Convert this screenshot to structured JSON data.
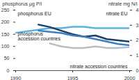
{
  "chart_data": {
    "type": "line",
    "ylabel": "phosphorus µg P/l",
    "y2label": "nitrate mg N/l",
    "x": [
      1990,
      1991,
      1992,
      1993,
      1994,
      1995,
      1996,
      1997,
      1998,
      1999,
      2000
    ],
    "xlim": [
      1990,
      2000
    ],
    "xticks": [
      1990,
      1995,
      2000
    ],
    "ylim": [
      0,
      250
    ],
    "yticks": [
      0,
      50,
      100,
      150,
      200,
      250
    ],
    "y2lim": [
      0,
      4
    ],
    "y2ticks": [
      0,
      1,
      2,
      3,
      4
    ],
    "series": [
      {
        "name": "nitrate EU",
        "color": "#56b4e0",
        "axis": "y2",
        "values": [
          2.5,
          2.6,
          2.7,
          2.8,
          2.8,
          2.9,
          2.9,
          2.8,
          2.8,
          2.8,
          2.8
        ]
      },
      {
        "name": "phosphorus EU",
        "color": "#1b3f6b",
        "values": [
          null,
          null,
          190,
          180,
          165,
          150,
          140,
          145,
          130,
          125,
          120
        ]
      },
      {
        "name": "phosphorus accession countries",
        "color": "#3d7fc1",
        "values": [
          null,
          null,
          165,
          160,
          155,
          145,
          140,
          130,
          120,
          110,
          105
        ]
      },
      {
        "name": "nitrate accession countries",
        "color": "#b4bcc4",
        "axis": "y2",
        "values": [
          null,
          null,
          null,
          1.8,
          1.6,
          1.5,
          1.5,
          1.6,
          1.5,
          1.5,
          1.55
        ]
      }
    ]
  }
}
